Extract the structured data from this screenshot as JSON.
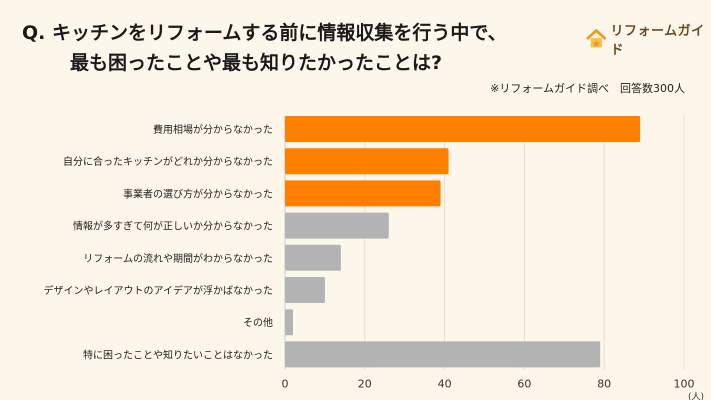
{
  "title": {
    "line1": "Q. キッチンをリフォームする前に情報収集を行う中で、",
    "line2": "最も困ったことや最も知りたかったことは?"
  },
  "logo": {
    "text": "リフォームガイド",
    "icon": "house-icon"
  },
  "note": "※リフォームガイド調べ　回答数300人",
  "colors": {
    "highlight": "#ff8000",
    "other": "#b3b3b3",
    "background": "#fdf6ea",
    "grid": "#e6ddd0"
  },
  "chart_data": {
    "type": "bar",
    "orientation": "horizontal",
    "categories": [
      "費用相場が分からなかった",
      "自分に合ったキッチンがどれか分からなかった",
      "事業者の選び方が分からなかった",
      "情報が多すぎて何が正しいか分からなかった",
      "リフォームの流れや期間がわからなかった",
      "デザインやレイアウトのアイデアが浮かばなかった",
      "その他",
      "特に困ったことや知りたいことはなかった"
    ],
    "values": [
      89,
      41,
      39,
      26,
      14,
      10,
      2,
      79
    ],
    "highlighted": [
      true,
      true,
      true,
      false,
      false,
      false,
      false,
      false
    ],
    "xlim": [
      0,
      100
    ],
    "xticks": [
      "0",
      "20",
      "40",
      "60",
      "80",
      "100"
    ],
    "xunit": "(人)",
    "grid": true
  }
}
